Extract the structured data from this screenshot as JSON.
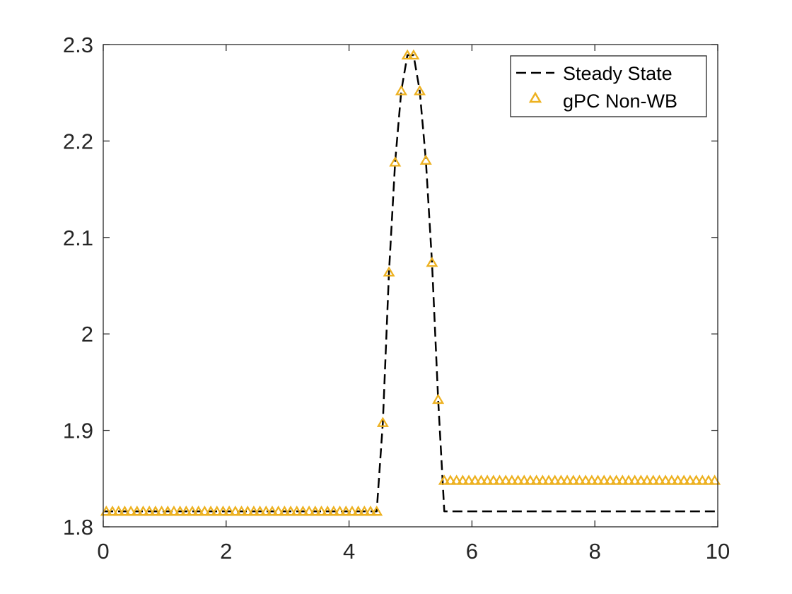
{
  "chart_data": {
    "type": "line",
    "title": "",
    "xlabel": "",
    "ylabel": "",
    "xlim": [
      0,
      10
    ],
    "ylim": [
      1.8,
      2.3
    ],
    "xticks": [
      0,
      2,
      4,
      6,
      8,
      10
    ],
    "yticks": [
      1.8,
      1.9,
      2.0,
      2.1,
      2.2,
      2.3
    ],
    "xtick_labels": [
      "0",
      "2",
      "4",
      "6",
      "8",
      "10"
    ],
    "ytick_labels": [
      "1.8",
      "1.9",
      "2",
      "2.1",
      "2.2",
      "2.3"
    ],
    "grid": false,
    "legend_position": "top-right",
    "series": [
      {
        "name": "Steady State",
        "style": "dashed-line",
        "color": "#000000",
        "x": [
          0,
          4.45,
          4.55,
          4.65,
          4.75,
          4.85,
          4.95,
          5.05,
          5.15,
          5.25,
          5.35,
          5.45,
          5.55,
          10
        ],
        "y": [
          1.816,
          1.816,
          1.908,
          2.064,
          2.178,
          2.252,
          2.289,
          2.289,
          2.252,
          2.18,
          2.074,
          1.932,
          1.816,
          1.816
        ]
      },
      {
        "name": "gPC Non-WB",
        "style": "triangle-markers",
        "color": "#EDB120",
        "x": [
          0.05,
          0.15,
          0.25,
          0.35,
          0.45,
          0.55,
          0.65,
          0.75,
          0.85,
          0.95,
          1.05,
          1.15,
          1.25,
          1.35,
          1.45,
          1.55,
          1.65,
          1.75,
          1.85,
          1.95,
          2.05,
          2.15,
          2.25,
          2.35,
          2.45,
          2.55,
          2.65,
          2.75,
          2.85,
          2.95,
          3.05,
          3.15,
          3.25,
          3.35,
          3.45,
          3.55,
          3.65,
          3.75,
          3.85,
          3.95,
          4.05,
          4.15,
          4.25,
          4.35,
          4.45,
          4.55,
          4.65,
          4.75,
          4.85,
          4.95,
          5.05,
          5.15,
          5.25,
          5.35,
          5.45,
          5.55,
          5.65,
          5.75,
          5.85,
          5.95,
          6.05,
          6.15,
          6.25,
          6.35,
          6.45,
          6.55,
          6.65,
          6.75,
          6.85,
          6.95,
          7.05,
          7.15,
          7.25,
          7.35,
          7.45,
          7.55,
          7.65,
          7.75,
          7.85,
          7.95,
          8.05,
          8.15,
          8.25,
          8.35,
          8.45,
          8.55,
          8.65,
          8.75,
          8.85,
          8.95,
          9.05,
          9.15,
          9.25,
          9.35,
          9.45,
          9.55,
          9.65,
          9.75,
          9.85,
          9.95
        ],
        "y": [
          1.816,
          1.816,
          1.816,
          1.816,
          1.816,
          1.816,
          1.816,
          1.816,
          1.816,
          1.816,
          1.816,
          1.816,
          1.816,
          1.816,
          1.816,
          1.816,
          1.816,
          1.816,
          1.816,
          1.816,
          1.816,
          1.816,
          1.816,
          1.816,
          1.816,
          1.816,
          1.816,
          1.816,
          1.816,
          1.816,
          1.816,
          1.816,
          1.816,
          1.816,
          1.816,
          1.816,
          1.816,
          1.816,
          1.816,
          1.816,
          1.816,
          1.816,
          1.816,
          1.816,
          1.816,
          1.908,
          2.064,
          2.178,
          2.252,
          2.289,
          2.289,
          2.252,
          2.18,
          2.074,
          1.932,
          1.848,
          1.848,
          1.848,
          1.848,
          1.848,
          1.848,
          1.848,
          1.848,
          1.848,
          1.848,
          1.848,
          1.848,
          1.848,
          1.848,
          1.848,
          1.848,
          1.848,
          1.848,
          1.848,
          1.848,
          1.848,
          1.848,
          1.848,
          1.848,
          1.848,
          1.848,
          1.848,
          1.848,
          1.848,
          1.848,
          1.848,
          1.848,
          1.848,
          1.848,
          1.848,
          1.848,
          1.848,
          1.848,
          1.848,
          1.848,
          1.848,
          1.848,
          1.848,
          1.848,
          1.848
        ]
      }
    ]
  }
}
